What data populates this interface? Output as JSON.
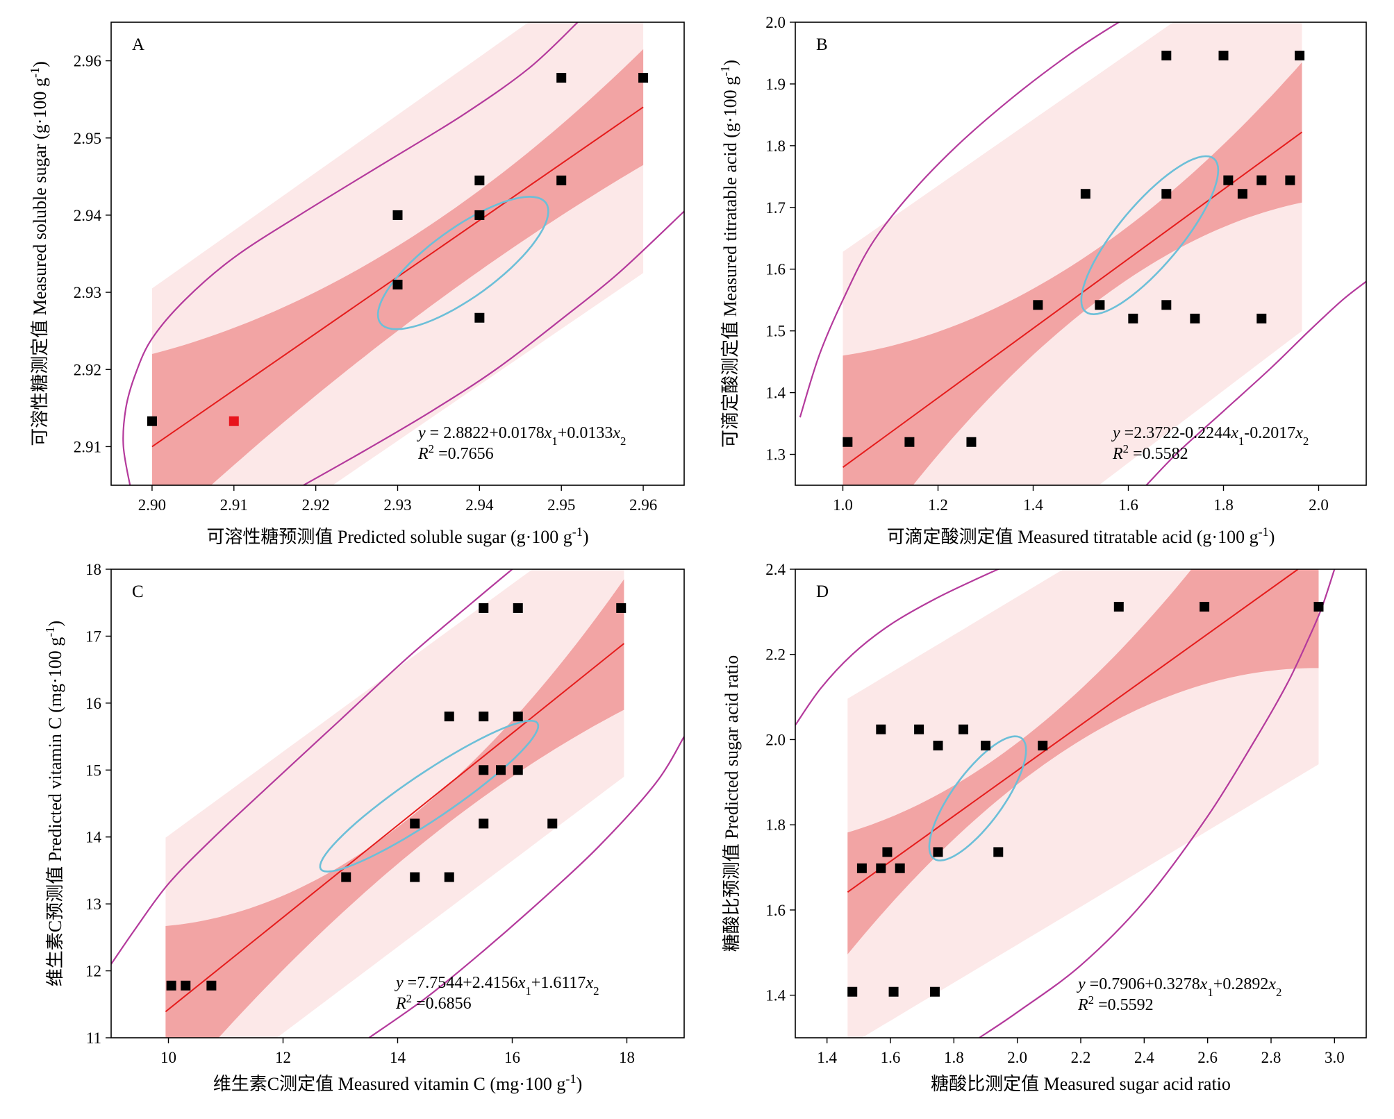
{
  "chart_data": [
    {
      "panel": "A",
      "type": "scatter",
      "xlabel": "可溶性糖预测值 Predicted soluble sugar (g·100 g⁻¹)",
      "ylabel": "可溶性糖测定值 Measured soluble sugar (g·100 g⁻¹)",
      "xlim": [
        2.895,
        2.965
      ],
      "ylim": [
        2.905,
        2.965
      ],
      "xticks": [
        2.9,
        2.91,
        2.92,
        2.93,
        2.94,
        2.95,
        2.96
      ],
      "yticks": [
        2.91,
        2.92,
        2.93,
        2.94,
        2.95,
        2.96
      ],
      "xtick_labels": [
        "2.90",
        "2.91",
        "2.92",
        "2.93",
        "2.94",
        "2.95",
        "2.96"
      ],
      "ytick_labels": [
        "2.91",
        "2.92",
        "2.93",
        "2.94",
        "2.95",
        "2.96"
      ],
      "points": [
        {
          "x": 2.9,
          "y": 2.9133
        },
        {
          "x": 2.91,
          "y": 2.9133,
          "highlight": true
        },
        {
          "x": 2.93,
          "y": 2.94
        },
        {
          "x": 2.93,
          "y": 2.931
        },
        {
          "x": 2.94,
          "y": 2.9445
        },
        {
          "x": 2.94,
          "y": 2.94
        },
        {
          "x": 2.94,
          "y": 2.9267
        },
        {
          "x": 2.95,
          "y": 2.9578
        },
        {
          "x": 2.95,
          "y": 2.9445
        },
        {
          "x": 2.96,
          "y": 2.9578
        }
      ],
      "fit_line": {
        "x": [
          2.9,
          2.96
        ],
        "y": [
          2.91,
          2.954
        ]
      },
      "confidence_band": {
        "x": [
          2.9,
          2.93,
          2.96
        ],
        "lower": [
          2.898,
          2.925,
          2.9465
        ],
        "upper": [
          2.922,
          2.936,
          2.9615
        ]
      },
      "prediction_band": {
        "x": [
          2.9,
          2.96
        ],
        "lower": [
          2.889,
          2.9325
        ],
        "upper": [
          2.9305,
          2.9755
        ]
      },
      "ellipse": {
        "cx": 2.938,
        "cy": 2.9338,
        "rx": 0.0125,
        "ry": 0.0042,
        "angle_deg": 36
      },
      "outer_curves": [
        {
          "x": [
            2.8975,
            2.8965,
            2.8968,
            2.898,
            2.9,
            2.904,
            2.91,
            2.918,
            2.928,
            2.938,
            2.946,
            2.952
          ],
          "y": [
            2.904,
            2.91,
            2.915,
            2.9195,
            2.924,
            2.929,
            2.9345,
            2.94,
            2.9465,
            2.953,
            2.959,
            2.965
          ]
        },
        {
          "x": [
            2.9185,
            2.926,
            2.934,
            2.942,
            2.95,
            2.957,
            2.965
          ],
          "y": [
            2.905,
            2.9095,
            2.9145,
            2.92,
            2.9265,
            2.9325,
            2.9405
          ]
        }
      ],
      "equation_lines": [
        "y = 2.8822+0.0178x₁+0.0133x₂",
        "R² =0.7656"
      ]
    },
    {
      "panel": "B",
      "type": "scatter",
      "xlabel": "可滴定酸测定值 Measured titratable acid (g·100 g⁻¹)",
      "ylabel": "可滴定酸测定值 Measured titratable acid (g·100 g⁻¹)",
      "xlim": [
        0.9,
        2.1
      ],
      "ylim": [
        1.25,
        2.0
      ],
      "xticks": [
        1.0,
        1.2,
        1.4,
        1.6,
        1.8,
        2.0
      ],
      "yticks": [
        1.3,
        1.4,
        1.5,
        1.6,
        1.7,
        1.8,
        1.9,
        2.0
      ],
      "xtick_labels": [
        "1.0",
        "1.2",
        "1.4",
        "1.6",
        "1.8",
        "2.0"
      ],
      "ytick_labels": [
        "1.3",
        "1.4",
        "1.5",
        "1.6",
        "1.7",
        "1.8",
        "1.9",
        "2.0"
      ],
      "points": [
        {
          "x": 1.01,
          "y": 1.32
        },
        {
          "x": 1.14,
          "y": 1.32
        },
        {
          "x": 1.27,
          "y": 1.32
        },
        {
          "x": 1.41,
          "y": 1.542
        },
        {
          "x": 1.51,
          "y": 1.722
        },
        {
          "x": 1.54,
          "y": 1.542
        },
        {
          "x": 1.61,
          "y": 1.52
        },
        {
          "x": 1.68,
          "y": 1.946
        },
        {
          "x": 1.68,
          "y": 1.722
        },
        {
          "x": 1.68,
          "y": 1.542
        },
        {
          "x": 1.74,
          "y": 1.52
        },
        {
          "x": 1.8,
          "y": 1.946
        },
        {
          "x": 1.81,
          "y": 1.744
        },
        {
          "x": 1.84,
          "y": 1.722
        },
        {
          "x": 1.88,
          "y": 1.744
        },
        {
          "x": 1.88,
          "y": 1.52
        },
        {
          "x": 1.94,
          "y": 1.744
        },
        {
          "x": 1.96,
          "y": 1.946
        }
      ],
      "fit_line": {
        "x": [
          1.0,
          1.965
        ],
        "y": [
          1.279,
          1.822
        ]
      },
      "confidence_band": {
        "x": [
          1.0,
          1.48,
          1.965
        ],
        "lower": [
          1.098,
          1.515,
          1.708
        ],
        "upper": [
          1.46,
          1.605,
          1.935
        ]
      },
      "prediction_band": {
        "x": [
          1.0,
          1.965
        ],
        "lower": [
          0.935,
          1.5
        ],
        "upper": [
          1.628,
          2.145
        ]
      },
      "ellipse": {
        "cx": 1.645,
        "cy": 1.655,
        "rx": 0.21,
        "ry": 0.065,
        "angle_deg": 50
      },
      "outer_curves": [
        {
          "x": [
            0.91,
            0.95,
            1.0,
            1.06,
            1.14,
            1.24,
            1.36,
            1.48,
            1.58,
            1.67
          ],
          "y": [
            1.36,
            1.46,
            1.55,
            1.64,
            1.72,
            1.8,
            1.88,
            1.95,
            2.0,
            2.04
          ]
        },
        {
          "x": [
            1.5,
            1.6,
            1.7,
            1.8,
            1.9,
            1.98,
            2.05,
            2.1
          ],
          "y": [
            1.15,
            1.22,
            1.3,
            1.37,
            1.44,
            1.5,
            1.55,
            1.58
          ]
        }
      ],
      "equation_lines": [
        "y =2.3722-0.2244x₁-0.2017x₂",
        "R² =0.5582"
      ]
    },
    {
      "panel": "C",
      "type": "scatter",
      "xlabel": "维生素C测定值 Measured vitamin C (mg·100 g⁻¹)",
      "ylabel": "维生素C预测值 Predicted vitamin C (mg·100 g⁻¹)",
      "xlim": [
        9,
        19
      ],
      "ylim": [
        11,
        18
      ],
      "xticks": [
        10,
        12,
        14,
        16,
        18
      ],
      "yticks": [
        11,
        12,
        13,
        14,
        15,
        16,
        17,
        18
      ],
      "xtick_labels": [
        "10",
        "12",
        "14",
        "16",
        "18"
      ],
      "ytick_labels": [
        "11",
        "12",
        "13",
        "14",
        "15",
        "16",
        "17",
        "18"
      ],
      "points": [
        {
          "x": 10.05,
          "y": 11.78
        },
        {
          "x": 10.3,
          "y": 11.78
        },
        {
          "x": 10.75,
          "y": 11.78
        },
        {
          "x": 13.1,
          "y": 13.4
        },
        {
          "x": 14.3,
          "y": 14.2
        },
        {
          "x": 14.3,
          "y": 13.4
        },
        {
          "x": 14.9,
          "y": 15.8
        },
        {
          "x": 14.9,
          "y": 13.4
        },
        {
          "x": 15.5,
          "y": 17.42
        },
        {
          "x": 15.5,
          "y": 15.8
        },
        {
          "x": 15.5,
          "y": 15.0
        },
        {
          "x": 15.5,
          "y": 14.2
        },
        {
          "x": 15.8,
          "y": 15.0
        },
        {
          "x": 16.1,
          "y": 17.42
        },
        {
          "x": 16.1,
          "y": 15.8
        },
        {
          "x": 16.1,
          "y": 15.0
        },
        {
          "x": 16.7,
          "y": 14.2
        },
        {
          "x": 17.9,
          "y": 17.42
        }
      ],
      "fit_line": {
        "x": [
          9.95,
          17.95
        ],
        "y": [
          11.39,
          16.89
        ]
      },
      "confidence_band": {
        "x": [
          9.95,
          14.4,
          17.95
        ],
        "lower": [
          10.1,
          13.88,
          15.9
        ],
        "upper": [
          12.67,
          14.42,
          17.85
        ]
      },
      "prediction_band": {
        "x": [
          9.95,
          17.95
        ],
        "lower": [
          9.75,
          14.9
        ],
        "upper": [
          13.99,
          19.0
        ]
      },
      "ellipse": {
        "cx": 14.55,
        "cy": 14.61,
        "rx": 2.28,
        "ry": 0.4,
        "angle_deg": 34
      },
      "outer_curves": [
        {
          "x": [
            9.0,
            9.4,
            10.0,
            10.8,
            11.8,
            13.0,
            14.2,
            15.3,
            16.0
          ],
          "y": [
            12.1,
            12.6,
            13.3,
            14.0,
            14.8,
            15.75,
            16.7,
            17.5,
            18.0
          ]
        },
        {
          "x": [
            13.5,
            14.5,
            15.5,
            16.5,
            17.5,
            18.5,
            19.0
          ],
          "y": [
            11.0,
            11.6,
            12.3,
            13.05,
            13.85,
            14.8,
            15.5
          ]
        }
      ],
      "equation_lines": [
        "y =7.7544+2.4156x₁+1.6117x₂",
        "R² =0.6856"
      ]
    },
    {
      "panel": "D",
      "type": "scatter",
      "xlabel": "糖酸比测定值 Measured sugar acid ratio",
      "ylabel": "糖酸比预测值 Predicted sugar acid ratio",
      "xlim": [
        1.3,
        3.1
      ],
      "ylim": [
        1.3,
        2.4
      ],
      "xticks": [
        1.4,
        1.6,
        1.8,
        2.0,
        2.2,
        2.4,
        2.6,
        2.8,
        3.0
      ],
      "yticks": [
        1.4,
        1.6,
        1.8,
        2.0,
        2.2,
        2.4
      ],
      "xtick_labels": [
        "1.4",
        "1.6",
        "1.8",
        "2.0",
        "2.2",
        "2.4",
        "2.6",
        "2.8",
        "3.0"
      ],
      "ytick_labels": [
        "1.4",
        "1.6",
        "1.8",
        "2.0",
        "2.2",
        "2.4"
      ],
      "points": [
        {
          "x": 1.48,
          "y": 1.408
        },
        {
          "x": 1.51,
          "y": 1.698
        },
        {
          "x": 1.57,
          "y": 2.024
        },
        {
          "x": 1.57,
          "y": 1.698
        },
        {
          "x": 1.59,
          "y": 1.736
        },
        {
          "x": 1.61,
          "y": 1.408
        },
        {
          "x": 1.63,
          "y": 1.698
        },
        {
          "x": 1.69,
          "y": 2.024
        },
        {
          "x": 1.74,
          "y": 1.408
        },
        {
          "x": 1.75,
          "y": 1.986
        },
        {
          "x": 1.75,
          "y": 1.736
        },
        {
          "x": 1.83,
          "y": 2.024
        },
        {
          "x": 1.9,
          "y": 1.986
        },
        {
          "x": 1.94,
          "y": 1.736
        },
        {
          "x": 2.08,
          "y": 1.986
        },
        {
          "x": 2.32,
          "y": 2.312
        },
        {
          "x": 2.59,
          "y": 2.312
        },
        {
          "x": 2.95,
          "y": 2.312
        }
      ],
      "fit_line": {
        "x": [
          1.465,
          2.885
        ],
        "y": [
          1.642,
          2.4
        ]
      },
      "confidence_band": {
        "x": [
          1.465,
          1.95,
          2.95
        ],
        "lower": [
          1.496,
          1.865,
          2.168
        ],
        "upper": [
          1.782,
          1.965,
          2.82
        ]
      },
      "prediction_band": {
        "x": [
          1.465,
          2.95
        ],
        "lower": [
          1.28,
          1.942
        ],
        "upper": [
          2.096,
          2.76
        ]
      },
      "ellipse": {
        "cx": 1.875,
        "cy": 1.862,
        "rx": 0.235,
        "ry": 0.08,
        "angle_deg": 54
      },
      "outer_curves": [
        {
          "x": [
            1.3,
            1.38,
            1.48,
            1.6,
            1.74,
            1.88,
            2.0
          ],
          "y": [
            2.034,
            2.12,
            2.2,
            2.27,
            2.33,
            2.38,
            2.42
          ]
        },
        {
          "x": [
            1.88,
            2.0,
            2.2,
            2.4,
            2.6,
            2.75,
            2.85,
            2.92,
            2.96,
            3.0
          ],
          "y": [
            1.3,
            1.36,
            1.47,
            1.62,
            1.82,
            2.0,
            2.13,
            2.24,
            2.31,
            2.4
          ]
        }
      ],
      "equation_lines": [
        "y =0.7906+0.3278x₁+0.2892x₂",
        "R² =0.5592"
      ]
    }
  ],
  "colors": {
    "prediction_band": "#fce8e8",
    "confidence_band": "#f2a4a4",
    "fit_line": "#e51c1c",
    "ellipse": "#6cbfd8",
    "outer_curve": "#b43a9c",
    "point": "#000000",
    "highlight_point": "#e8141c"
  }
}
